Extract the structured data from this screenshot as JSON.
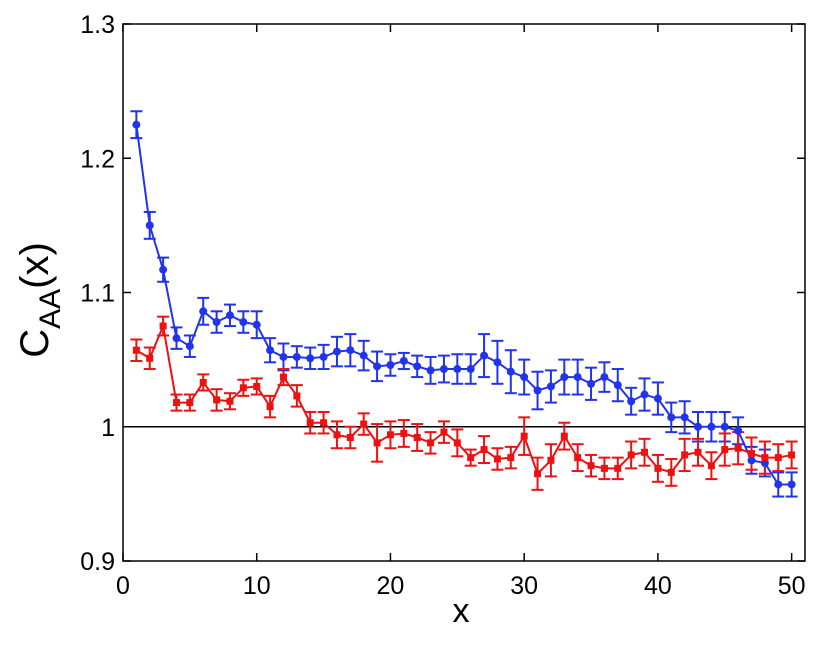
{
  "chart_data": {
    "type": "scatter",
    "xlabel": "x",
    "ylabel_main": "C",
    "ylabel_sub": "AA",
    "ylabel_suffix": "(x)",
    "xlim": [
      0,
      51
    ],
    "ylim": [
      0.9,
      1.3
    ],
    "xticks": [
      0,
      10,
      20,
      30,
      40,
      50
    ],
    "xtick_labels": [
      "0",
      "10",
      "20",
      "30",
      "40",
      "50"
    ],
    "yticks": [
      0.9,
      1.0,
      1.1,
      1.2,
      1.3
    ],
    "ytick_labels": [
      "0.9",
      "1",
      "1.1",
      "1.2",
      "1.3"
    ],
    "reference_line": 1.0,
    "grid": false,
    "series": [
      {
        "color": "#2233ee",
        "marker": "circle",
        "x": [
          1,
          2,
          3,
          4,
          5,
          6,
          7,
          8,
          9,
          10,
          11,
          12,
          13,
          14,
          15,
          16,
          17,
          18,
          19,
          20,
          21,
          22,
          23,
          24,
          25,
          26,
          27,
          28,
          29,
          30,
          31,
          32,
          33,
          34,
          35,
          36,
          37,
          38,
          39,
          40,
          41,
          42,
          43,
          44,
          45,
          46,
          47,
          48,
          49,
          50
        ],
        "y": [
          1.225,
          1.15,
          1.117,
          1.066,
          1.06,
          1.086,
          1.078,
          1.083,
          1.078,
          1.076,
          1.057,
          1.052,
          1.052,
          1.051,
          1.052,
          1.056,
          1.057,
          1.053,
          1.045,
          1.046,
          1.049,
          1.045,
          1.042,
          1.043,
          1.043,
          1.043,
          1.053,
          1.048,
          1.041,
          1.037,
          1.027,
          1.03,
          1.037,
          1.037,
          1.032,
          1.037,
          1.031,
          1.019,
          1.024,
          1.021,
          1.007,
          1.007,
          1.0,
          1.0,
          1.0,
          0.997,
          0.975,
          0.973,
          0.957,
          0.957
        ],
        "err": [
          0.01,
          0.01,
          0.009,
          0.008,
          0.008,
          0.01,
          0.008,
          0.008,
          0.008,
          0.01,
          0.009,
          0.01,
          0.008,
          0.008,
          0.009,
          0.011,
          0.012,
          0.011,
          0.011,
          0.008,
          0.006,
          0.008,
          0.01,
          0.01,
          0.011,
          0.011,
          0.016,
          0.016,
          0.016,
          0.013,
          0.014,
          0.012,
          0.013,
          0.013,
          0.012,
          0.011,
          0.012,
          0.01,
          0.012,
          0.012,
          0.011,
          0.012,
          0.011,
          0.011,
          0.011,
          0.01,
          0.01,
          0.01,
          0.009,
          0.009
        ]
      },
      {
        "color": "#ee1111",
        "marker": "square",
        "x": [
          1,
          2,
          3,
          4,
          5,
          6,
          7,
          8,
          9,
          10,
          11,
          12,
          13,
          14,
          15,
          16,
          17,
          18,
          19,
          20,
          21,
          22,
          23,
          24,
          25,
          26,
          27,
          28,
          29,
          30,
          31,
          32,
          33,
          34,
          35,
          36,
          37,
          38,
          39,
          40,
          41,
          42,
          43,
          44,
          45,
          46,
          47,
          48,
          49,
          50
        ],
        "y": [
          1.057,
          1.051,
          1.075,
          1.018,
          1.018,
          1.033,
          1.02,
          1.019,
          1.029,
          1.03,
          1.015,
          1.037,
          1.023,
          1.003,
          1.003,
          0.994,
          0.992,
          1.002,
          0.988,
          0.994,
          0.995,
          0.992,
          0.988,
          0.996,
          0.988,
          0.977,
          0.983,
          0.976,
          0.977,
          0.993,
          0.965,
          0.975,
          0.993,
          0.977,
          0.971,
          0.969,
          0.969,
          0.979,
          0.981,
          0.969,
          0.966,
          0.979,
          0.981,
          0.971,
          0.983,
          0.984,
          0.98,
          0.977,
          0.977,
          0.979
        ],
        "err": [
          0.008,
          0.008,
          0.007,
          0.006,
          0.006,
          0.006,
          0.008,
          0.006,
          0.006,
          0.006,
          0.008,
          0.006,
          0.008,
          0.008,
          0.008,
          0.01,
          0.008,
          0.008,
          0.014,
          0.01,
          0.01,
          0.01,
          0.008,
          0.008,
          0.01,
          0.006,
          0.01,
          0.008,
          0.008,
          0.014,
          0.012,
          0.012,
          0.01,
          0.01,
          0.008,
          0.008,
          0.008,
          0.01,
          0.01,
          0.01,
          0.01,
          0.012,
          0.01,
          0.01,
          0.012,
          0.012,
          0.012,
          0.012,
          0.01,
          0.01
        ]
      }
    ]
  }
}
